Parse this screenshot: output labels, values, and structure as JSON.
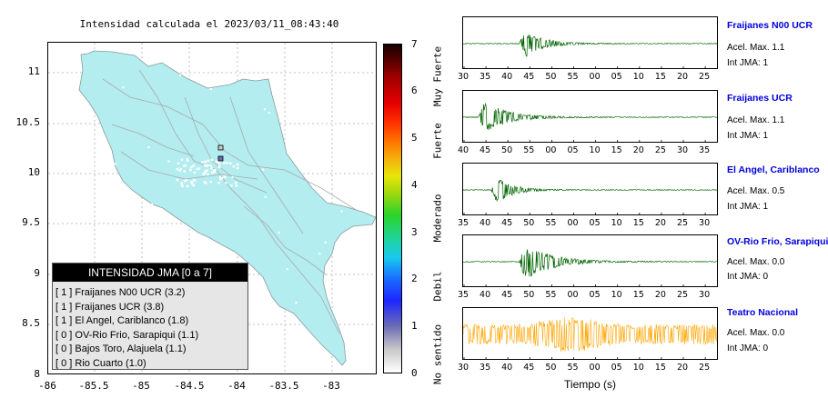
{
  "map": {
    "title": "Intensidad calculada el 2023/03/11_08:43:40",
    "x_ticks": [
      "-86",
      "-85.5",
      "-85",
      "-84.5",
      "-84",
      "-83.5",
      "-83"
    ],
    "y_ticks": [
      "11",
      "10.5",
      "10",
      "9.5",
      "9",
      "8.5",
      "8"
    ],
    "land_color": "#b3edf0",
    "legend": {
      "title": "INTENSIDAD JMA [0 a 7]",
      "entries": [
        "[ 1 ]  Fraijanes N00 UCR (3.2)",
        "[ 1 ]  Fraijanes UCR (3.8)",
        "[ 1 ]  El Angel, Cariblanco (1.8)",
        "[ 0 ]  OV-Rio Frio, Sarapiqui (1.1)",
        "[ 0 ]  Bajos Toro, Alajuela (1.1)",
        "[ 0 ]  Rio Cuarto (1.0)"
      ]
    }
  },
  "colorbar": {
    "ticks": [
      "0",
      "1",
      "2",
      "3",
      "4",
      "5",
      "6",
      "7"
    ],
    "categories": [
      "No sentido",
      "Debil",
      "Moderado",
      "Fuerte",
      "Muy Fuerte"
    ]
  },
  "traces": [
    {
      "station": "Fraijanes N00 UCR",
      "accel": "Acel. Max. 1.1",
      "jma": "Int JMA: 1",
      "color": "#006400",
      "ticks": [
        "30",
        "35",
        "40",
        "45",
        "50",
        "55",
        "00",
        "05",
        "10",
        "15",
        "20",
        "25"
      ]
    },
    {
      "station": "Fraijanes UCR",
      "accel": "Acel. Max. 1.1",
      "jma": "Int JMA: 1",
      "color": "#006400",
      "ticks": [
        "40",
        "45",
        "50",
        "55",
        "00",
        "05",
        "10",
        "15",
        "20",
        "25",
        "30",
        "35"
      ]
    },
    {
      "station": "El Angel, Cariblanco",
      "accel": "Acel. Max. 0.5",
      "jma": "Int JMA: 1",
      "color": "#006400",
      "ticks": [
        "35",
        "40",
        "45",
        "50",
        "55",
        "00",
        "05",
        "10",
        "15",
        "20",
        "25",
        "30"
      ]
    },
    {
      "station": "OV-Rio Frio, Sarapiqui",
      "accel": "Acel. Max. 0.0",
      "jma": "Int JMA: 0",
      "color": "#006400",
      "ticks": [
        "35",
        "40",
        "45",
        "50",
        "55",
        "00",
        "05",
        "10",
        "15",
        "20",
        "25",
        "30"
      ]
    },
    {
      "station": "Teatro Nacional",
      "accel": "Acel. Max. 0.0",
      "jma": "Int JMA: 0",
      "color": "#ffa500",
      "ticks": [
        "30",
        "35",
        "40",
        "45",
        "50",
        "55",
        "00",
        "05",
        "10",
        "15",
        "20",
        "25"
      ]
    }
  ],
  "time_axis_label": "Tiempo (s)"
}
